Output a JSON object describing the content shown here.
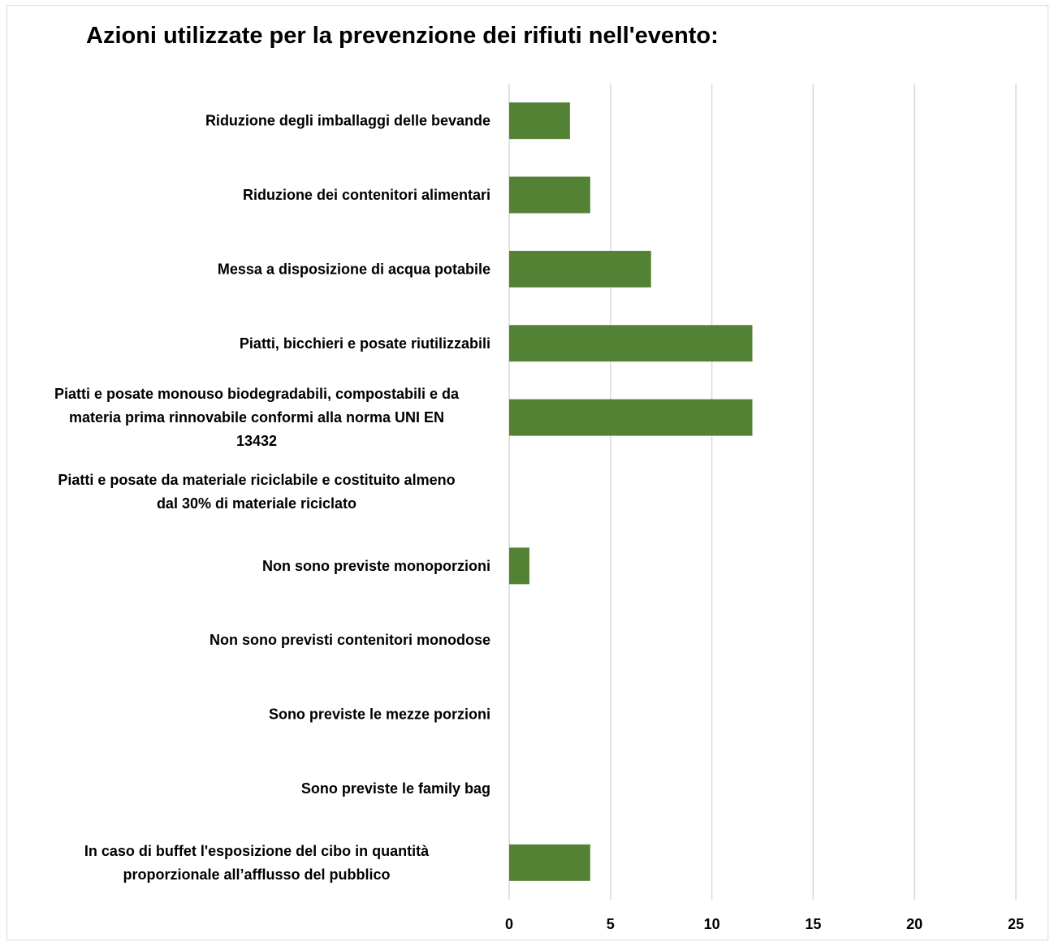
{
  "chart_data": {
    "type": "bar",
    "orientation": "horizontal",
    "title": "Azioni utilizzate per la prevenzione dei rifiuti nell'evento:",
    "categories": [
      "Riduzione degli imballaggi delle bevande",
      "Riduzione dei contenitori alimentari",
      "Messa a disposizione di acqua potabile",
      "Piatti, bicchieri e posate riutilizzabili",
      "Piatti e posate monouso biodegradabili, compostabili e da materia prima rinnovabile conformi alla norma UNI EN 13432",
      "Piatti e posate da materiale riciclabile e costituito almeno dal 30% di materiale riciclato",
      "Non sono previste monoporzioni",
      "Non sono previsti contenitori monodose",
      "Sono previste le mezze porzioni",
      "Sono previste le family bag",
      "In caso di buffet l'esposizione del cibo in quantità proporzionale all’afflusso del pubblico"
    ],
    "category_lines": [
      [
        "Riduzione degli imballaggi delle bevande"
      ],
      [
        "Riduzione dei contenitori alimentari"
      ],
      [
        "Messa a disposizione di acqua potabile"
      ],
      [
        "Piatti, bicchieri e posate riutilizzabili"
      ],
      [
        "Piatti e posate monouso biodegradabili, compostabili e da",
        "materia prima rinnovabile conformi alla norma UNI EN",
        "13432"
      ],
      [
        "Piatti e posate da materiale riciclabile e costituito almeno",
        "dal 30% di materiale riciclato"
      ],
      [
        "Non sono previste monoporzioni"
      ],
      [
        "Non sono previsti contenitori monodose"
      ],
      [
        "Sono previste le mezze porzioni"
      ],
      [
        "Sono previste le family bag"
      ],
      [
        "In caso di buffet l'esposizione del cibo in quantità",
        "proporzionale all’afflusso del pubblico"
      ]
    ],
    "values": [
      3,
      4,
      7,
      12,
      12,
      0,
      1,
      0,
      0,
      0,
      4
    ],
    "xlim": [
      0,
      25
    ],
    "xticks": [
      0,
      5,
      10,
      15,
      20,
      25
    ],
    "grid": "vertical",
    "bar_color": "#548235",
    "grid_color": "#d9d9d9"
  }
}
